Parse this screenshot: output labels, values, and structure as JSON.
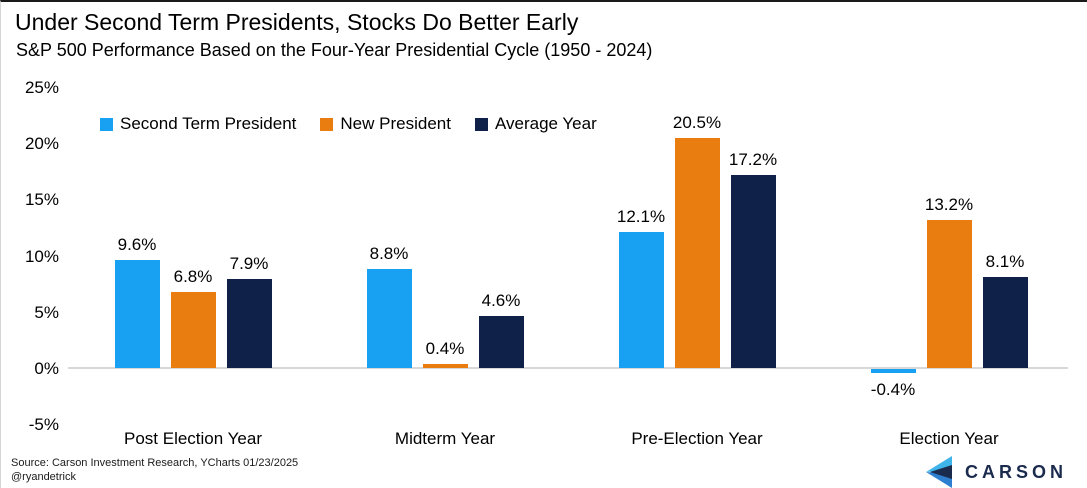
{
  "header": {
    "title": "Under Second Term Presidents, Stocks Do Better Early",
    "subtitle": "S&P 500 Performance Based on the Four-Year Presidential Cycle (1950 - 2024)"
  },
  "chart_data": {
    "type": "bar",
    "title": "Under Second Term Presidents, Stocks Do Better Early",
    "subtitle": "S&P 500 Performance Based on the Four-Year Presidential Cycle (1950 - 2024)",
    "categories": [
      "Post Election Year",
      "Midterm Year",
      "Pre-Election Year",
      "Election Year"
    ],
    "series": [
      {
        "name": "Second Term President",
        "color": "#18a0f2",
        "values": [
          9.6,
          8.8,
          12.1,
          -0.4
        ]
      },
      {
        "name": "New President",
        "color": "#e97d10",
        "values": [
          6.8,
          0.4,
          20.5,
          13.2
        ]
      },
      {
        "name": "Average Year",
        "color": "#0f2049",
        "values": [
          7.9,
          4.6,
          17.2,
          8.1
        ]
      }
    ],
    "value_suffix": "%",
    "ylim": [
      -5,
      25
    ],
    "yticks": [
      25,
      20,
      15,
      10,
      5,
      0,
      -5
    ],
    "grid": "zero-line-only",
    "legend_position": "top-left",
    "xlabel": "",
    "ylabel": ""
  },
  "footer": {
    "source": "Source: Carson Investment Research, YCharts 01/23/2025",
    "handle": "@ryandetrick",
    "brand": "CARSON"
  },
  "colors": {
    "zero_line": "#d8d8d8",
    "logo_navy": "#1b2b4d",
    "logo_light_blue": "#3fb4ea",
    "logo_mid_blue": "#2e7fd0"
  }
}
